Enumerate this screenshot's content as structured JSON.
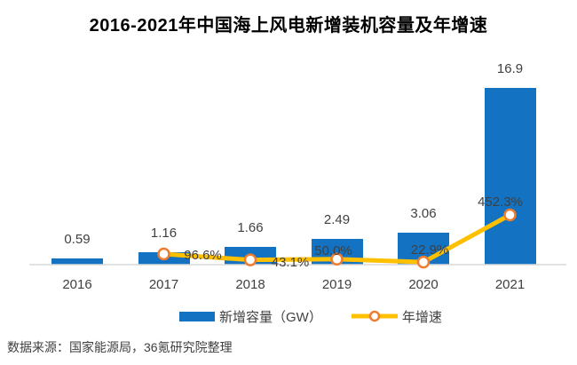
{
  "title": "2016-2021年中国海上风电新增装机容量及年增速",
  "source": "数据来源：国家能源局，36氪研究院整理",
  "legend": {
    "bar_label": "新增容量（GW）",
    "line_label": "年增速"
  },
  "colors": {
    "bar": "#1372C2",
    "line": "#FFC000",
    "marker_fill": "#FFFFFF",
    "marker_ring": "#ED7D31",
    "axis": "#D9D9D9",
    "label_text": "#404040",
    "title_text": "#000000"
  },
  "chart_data": {
    "type": "combo",
    "title": "2016-2021年中国海上风电新增装机容量及年增速",
    "categories": [
      "2016",
      "2017",
      "2018",
      "2019",
      "2020",
      "2021"
    ],
    "series": [
      {
        "name": "新增容量（GW）",
        "type": "bar",
        "unit": "GW",
        "values": [
          0.59,
          1.16,
          1.66,
          2.49,
          3.06,
          16.9
        ],
        "labels": [
          "0.59",
          "1.16",
          "1.66",
          "2.49",
          "3.06",
          "16.9"
        ]
      },
      {
        "name": "年增速",
        "type": "line",
        "unit": "%",
        "values": [
          null,
          96.6,
          43.1,
          50.0,
          22.9,
          452.3
        ],
        "labels": [
          null,
          "96.6%",
          "43.1%",
          "50.0%",
          "22.9%",
          "452.3%"
        ]
      }
    ],
    "legend_position": "bottom",
    "grid": false,
    "axes": {
      "x_ticks": [
        "2016",
        "2017",
        "2018",
        "2019",
        "2020",
        "2021"
      ],
      "y_axis_visible": false,
      "baseline_visible": true
    }
  }
}
